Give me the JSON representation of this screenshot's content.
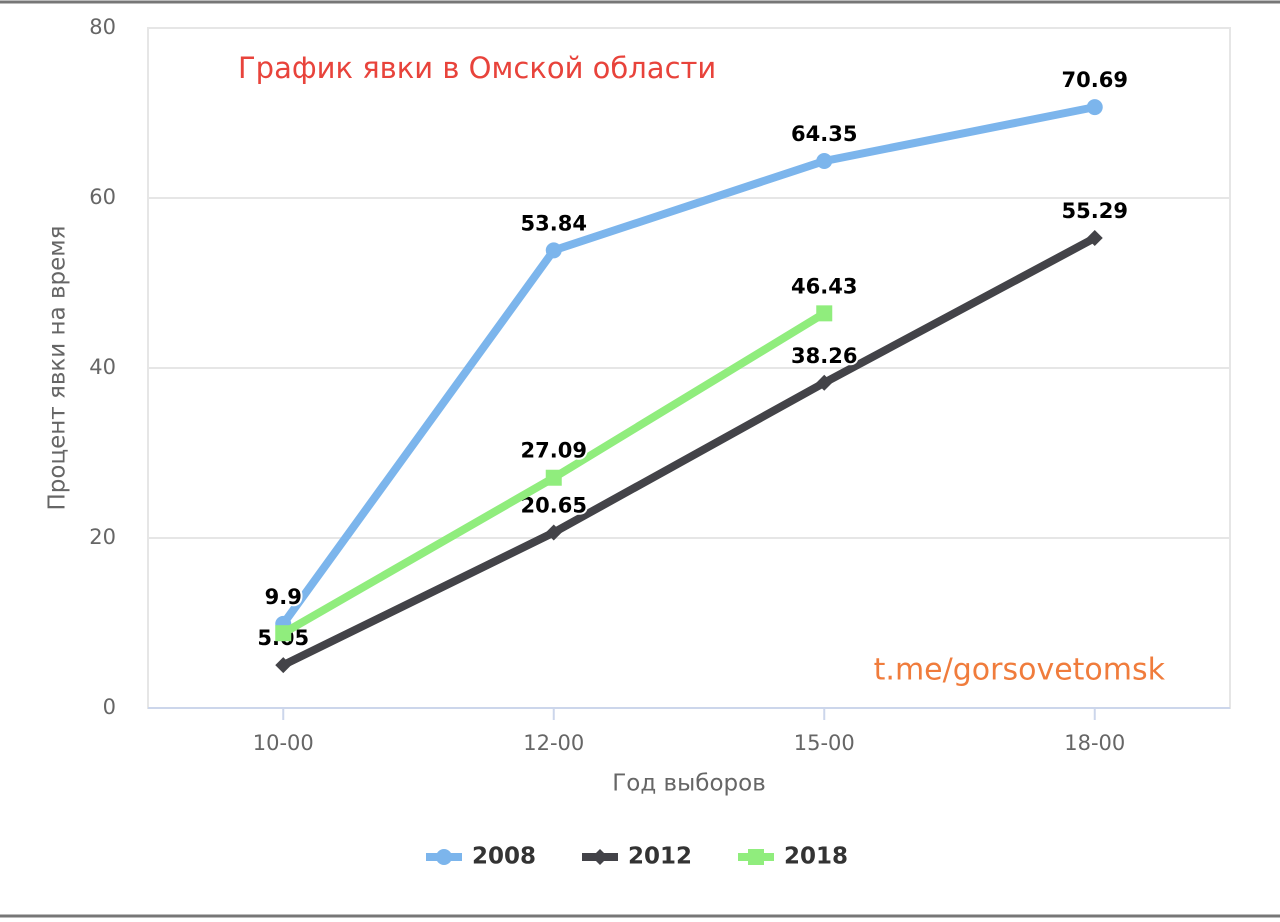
{
  "chart_data": {
    "type": "line",
    "title": "График явки в Омской области",
    "watermark": "t.me/gorsovetomsk",
    "x_label": "Год выборов",
    "y_label": "Процент явки на время",
    "categories": [
      "10-00",
      "12-00",
      "15-00",
      "18-00"
    ],
    "series": [
      {
        "name": "2008",
        "color": "#7cb5ec",
        "marker": "circle",
        "values": [
          9.9,
          53.84,
          64.35,
          70.69
        ]
      },
      {
        "name": "2012",
        "color": "#434348",
        "marker": "diamond",
        "values": [
          5.05,
          20.65,
          38.26,
          55.29
        ]
      },
      {
        "name": "2018",
        "color": "#90ed7d",
        "marker": "square",
        "values": [
          8.8,
          27.09,
          46.43,
          null
        ],
        "value_labels": [
          null,
          "27.09",
          "46.43",
          null
        ]
      }
    ],
    "ylim": [
      0,
      80
    ],
    "yticks": [
      0,
      20,
      40,
      60,
      80
    ],
    "grid": true,
    "legend": "bottom"
  }
}
